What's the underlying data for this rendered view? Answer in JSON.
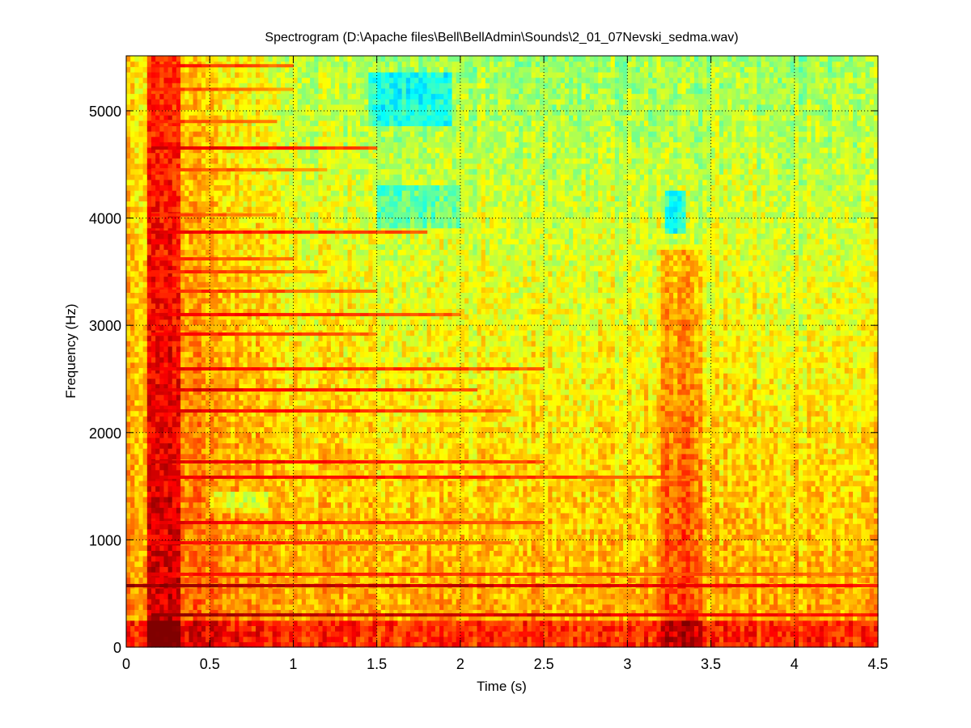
{
  "chart_data": {
    "type": "heatmap",
    "title": "Spectrogram (D:\\Apache files\\Bell\\BellAdmin\\Sounds\\2_01_07Nevski_sedma.wav)",
    "xlabel": "Time (s)",
    "ylabel": "Frequency (Hz)",
    "xlim": [
      0,
      4.5
    ],
    "ylim": [
      0,
      5512.5
    ],
    "xticks": [
      "0",
      "0.5",
      "1",
      "1.5",
      "2",
      "2.5",
      "3",
      "3.5",
      "4",
      "4.5"
    ],
    "xtick_values": [
      0,
      0.5,
      1,
      1.5,
      2,
      2.5,
      3,
      3.5,
      4,
      4.5
    ],
    "yticks": [
      "0",
      "1000",
      "2000",
      "3000",
      "4000",
      "5000"
    ],
    "ytick_values": [
      0,
      1000,
      2000,
      3000,
      4000,
      5000
    ],
    "grid": true,
    "colormap": "jet",
    "intensity_scale": "normalized 0-1",
    "background_level_low_freq": 0.72,
    "background_level_high_freq": 0.53,
    "harmonics": [
      {
        "f": 300,
        "t_start": 0.15,
        "t_end": 4.5,
        "level": 0.97
      },
      {
        "f": 573,
        "t_start": 0.0,
        "t_end": 4.5,
        "level": 0.98
      },
      {
        "f": 679,
        "t_start": 0.15,
        "t_end": 4.5,
        "level": 0.88
      },
      {
        "f": 973,
        "t_start": 0.15,
        "t_end": 2.3,
        "level": 0.88
      },
      {
        "f": 1161,
        "t_start": 0.15,
        "t_end": 2.5,
        "level": 0.9
      },
      {
        "f": 1584,
        "t_start": 0.15,
        "t_end": 3.4,
        "level": 0.9
      },
      {
        "f": 1727,
        "t_start": 0.15,
        "t_end": 2.5,
        "level": 0.92
      },
      {
        "f": 2202,
        "t_start": 0.15,
        "t_end": 2.3,
        "level": 0.9
      },
      {
        "f": 2398,
        "t_start": 0.15,
        "t_end": 2.1,
        "level": 0.92
      },
      {
        "f": 2594,
        "t_start": 0.15,
        "t_end": 2.5,
        "level": 0.9
      },
      {
        "f": 2918,
        "t_start": 0.15,
        "t_end": 1.5,
        "level": 0.88
      },
      {
        "f": 3100,
        "t_start": 0.15,
        "t_end": 2.0,
        "level": 0.9
      },
      {
        "f": 3318,
        "t_start": 0.15,
        "t_end": 1.5,
        "level": 0.86
      },
      {
        "f": 3499,
        "t_start": 0.15,
        "t_end": 1.2,
        "level": 0.86
      },
      {
        "f": 3620,
        "t_start": 0.15,
        "t_end": 1.0,
        "level": 0.86
      },
      {
        "f": 3869,
        "t_start": 0.15,
        "t_end": 1.8,
        "level": 0.9
      },
      {
        "f": 4030,
        "t_start": 0.15,
        "t_end": 0.9,
        "level": 0.84
      },
      {
        "f": 4450,
        "t_start": 0.15,
        "t_end": 1.2,
        "level": 0.84
      },
      {
        "f": 4653,
        "t_start": 0.15,
        "t_end": 1.5,
        "level": 0.92
      },
      {
        "f": 4900,
        "t_start": 0.15,
        "t_end": 0.9,
        "level": 0.84
      },
      {
        "f": 5200,
        "t_start": 0.15,
        "t_end": 1.0,
        "level": 0.84
      },
      {
        "f": 5420,
        "t_start": 0.15,
        "t_end": 1.0,
        "level": 0.88
      }
    ],
    "regions": [
      {
        "label": "onset",
        "t": [
          0.12,
          0.32
        ],
        "f": [
          0,
          5512
        ],
        "delta": 0.2
      },
      {
        "label": "early-decay",
        "t": [
          0.32,
          1.0
        ],
        "f": [
          0,
          5512
        ],
        "delta": 0.07
      },
      {
        "label": "cyan-patch-high",
        "t": [
          1.45,
          1.95
        ],
        "f": [
          4850,
          5350
        ],
        "delta": -0.15
      },
      {
        "label": "cyan-patch-mid",
        "t": [
          1.5,
          2.0
        ],
        "f": [
          3900,
          4300
        ],
        "delta": -0.1
      },
      {
        "label": "second-strike",
        "t": [
          3.2,
          3.45
        ],
        "f": [
          0,
          3700
        ],
        "delta": 0.1
      },
      {
        "label": "second-strike-cyan",
        "t": [
          3.22,
          3.36
        ],
        "f": [
          3850,
          4250
        ],
        "delta": -0.18
      },
      {
        "label": "low-band",
        "t": [
          0,
          4.5
        ],
        "f": [
          0,
          250
        ],
        "delta": 0.12
      },
      {
        "label": "mid-green",
        "t": [
          0.5,
          0.85
        ],
        "f": [
          1250,
          1450
        ],
        "delta": -0.1
      }
    ]
  }
}
